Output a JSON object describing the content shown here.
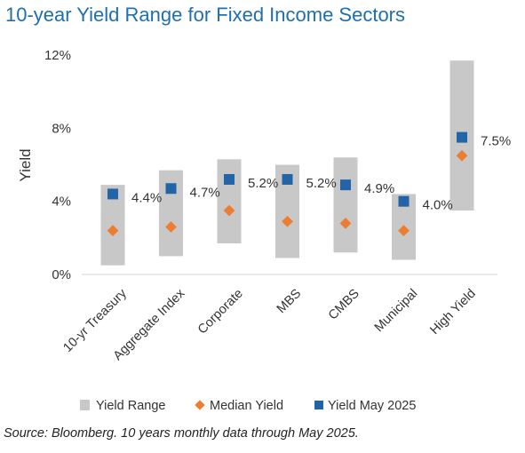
{
  "title": "10-year Yield Range for Fixed Income Sectors",
  "source": "Source: Bloomberg. 10 years monthly data through May 2025.",
  "colors": {
    "title": "#1f6fae",
    "range": "#c8c8c8",
    "median": "#ed7d31",
    "current": "#2264a8",
    "axis_line": "#d9d9d9",
    "text": "#333333"
  },
  "chart_data": {
    "type": "range-with-markers",
    "title": "10-year Yield Range for Fixed Income Sectors",
    "ylabel": "Yield",
    "xlabel": "",
    "ylim": [
      0,
      12
    ],
    "yticks": [
      0,
      4,
      8,
      12
    ],
    "ytick_labels": [
      "0%",
      "4%",
      "8%",
      "12%"
    ],
    "grid": false,
    "legend_position": "bottom",
    "categories": [
      "10-yr Treasury",
      "Aggregate Index",
      "Corporate",
      "MBS",
      "CMBS",
      "Municipal",
      "High Yield"
    ],
    "series": [
      {
        "name": "Yield Range",
        "marker": "bar",
        "low": [
          0.5,
          1.0,
          1.7,
          0.9,
          1.2,
          0.8,
          3.5
        ],
        "high": [
          4.9,
          5.7,
          6.3,
          6.0,
          6.4,
          4.4,
          11.7
        ]
      },
      {
        "name": "Median Yield",
        "marker": "diamond",
        "values": [
          2.4,
          2.6,
          3.5,
          2.9,
          2.8,
          2.4,
          6.5
        ]
      },
      {
        "name": "Yield May 2025",
        "marker": "square",
        "values": [
          4.4,
          4.7,
          5.2,
          5.2,
          4.9,
          4.0,
          7.5
        ],
        "labels": [
          "4.4%",
          "4.7%",
          "5.2%",
          "5.2%",
          "4.9%",
          "4.0%",
          "7.5%"
        ]
      }
    ]
  }
}
